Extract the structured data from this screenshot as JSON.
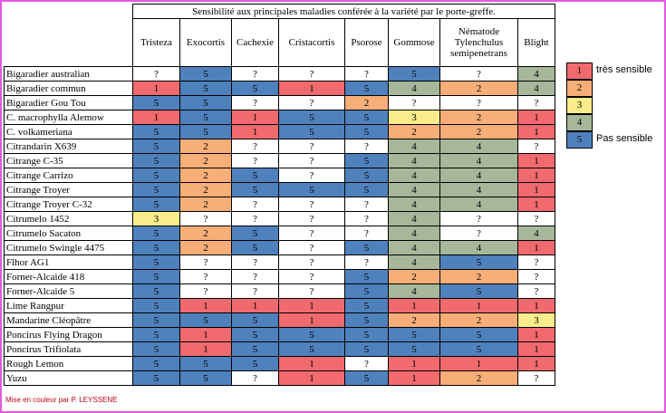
{
  "title": "Sensibilité aux principales maladies conférée à la variété par le porte-greffe.",
  "headers": [
    "Tristeza",
    "Exocortis",
    "Cachexie",
    "Cristacortis",
    "Psorose",
    "Gommose",
    "Nématode\nTylenchulus\nsemipenetrans",
    "Blight"
  ],
  "rows": [
    {
      "name": "Bigaradier australian",
      "values": [
        "?",
        "5",
        "?",
        "?",
        "?",
        "5",
        "?",
        "4"
      ]
    },
    {
      "name": "Bigaradier commun",
      "values": [
        "1",
        "5",
        "5",
        "1",
        "5",
        "4",
        "2",
        "4"
      ]
    },
    {
      "name": "Bigaradier Gou Tou",
      "values": [
        "5",
        "5",
        "?",
        "?",
        "2",
        "?",
        "?",
        "?"
      ]
    },
    {
      "name": "C. macrophylla Alemow",
      "values": [
        "1",
        "5",
        "1",
        "5",
        "5",
        "3",
        "2",
        "1"
      ]
    },
    {
      "name": "C. volkameriana",
      "values": [
        "5",
        "5",
        "1",
        "5",
        "5",
        "2",
        "2",
        "1"
      ]
    },
    {
      "name": "Citrandarin X639",
      "values": [
        "5",
        "2",
        "?",
        "?",
        "?",
        "4",
        "4",
        "?"
      ]
    },
    {
      "name": "Citrange C-35",
      "values": [
        "5",
        "2",
        "?",
        "?",
        "5",
        "4",
        "4",
        "1"
      ]
    },
    {
      "name": "Citrange Carrizo",
      "values": [
        "5",
        "2",
        "5",
        "?",
        "5",
        "4",
        "4",
        "1"
      ]
    },
    {
      "name": "Citrange Troyer",
      "values": [
        "5",
        "2",
        "5",
        "5",
        "5",
        "4",
        "4",
        "1"
      ]
    },
    {
      "name": "Citrange Troyer C-32",
      "values": [
        "5",
        "2",
        "?",
        "?",
        "?",
        "4",
        "4",
        "1"
      ]
    },
    {
      "name": "Citrumelo 1452",
      "values": [
        "3",
        "?",
        "?",
        "?",
        "?",
        "4",
        "?",
        "?"
      ]
    },
    {
      "name": "Citrumelo Sacaton",
      "values": [
        "5",
        "2",
        "5",
        "?",
        "?",
        "4",
        "?",
        "4"
      ]
    },
    {
      "name": "Citrumelo Swingle 4475",
      "values": [
        "5",
        "2",
        "5",
        "?",
        "5",
        "4",
        "4",
        "1"
      ]
    },
    {
      "name": "Flhor AG1",
      "values": [
        "5",
        "?",
        "?",
        "?",
        "?",
        "4",
        "5",
        "?"
      ]
    },
    {
      "name": "Forner-Alcaide 418",
      "values": [
        "5",
        "?",
        "?",
        "?",
        "5",
        "2",
        "2",
        "?"
      ]
    },
    {
      "name": "Forner-Alcaide 5",
      "values": [
        "5",
        "?",
        "?",
        "?",
        "5",
        "4",
        "5",
        "?"
      ]
    },
    {
      "name": "Lime Rangpur",
      "values": [
        "5",
        "1",
        "1",
        "1",
        "5",
        "1",
        "1",
        "1"
      ]
    },
    {
      "name": "Mandarine Cléopâtre",
      "values": [
        "5",
        "5",
        "5",
        "1",
        "5",
        "2",
        "2",
        "3"
      ]
    },
    {
      "name": "Poncirus Flying Dragon",
      "values": [
        "5",
        "1",
        "5",
        "5",
        "5",
        "5",
        "5",
        "1"
      ]
    },
    {
      "name": "Poncirus Trifiolata",
      "values": [
        "5",
        "1",
        "5",
        "5",
        "5",
        "5",
        "5",
        "1"
      ]
    },
    {
      "name": "Rough Lemon",
      "values": [
        "5",
        "5",
        "5",
        "1",
        "?",
        "1",
        "1",
        "1"
      ]
    },
    {
      "name": "Yuzu",
      "values": [
        "5",
        "5",
        "?",
        "1",
        "5",
        "1",
        "2",
        "?"
      ]
    }
  ],
  "legend": [
    {
      "value": "1",
      "label": "très sensible"
    },
    {
      "value": "2",
      "label": ""
    },
    {
      "value": "3",
      "label": ""
    },
    {
      "value": "4",
      "label": ""
    },
    {
      "value": "5",
      "label": "Pas sensible"
    }
  ],
  "colors": {
    "1": "#f06a6e",
    "2": "#f7ae78",
    "3": "#faec8a",
    "4": "#a7b79a",
    "5": "#4f81bd",
    "?": "#ffffff",
    "frame": "#e35ad9",
    "credit": "#c0001a"
  },
  "credit": "Mise en couleur par P. LEYSSENE"
}
